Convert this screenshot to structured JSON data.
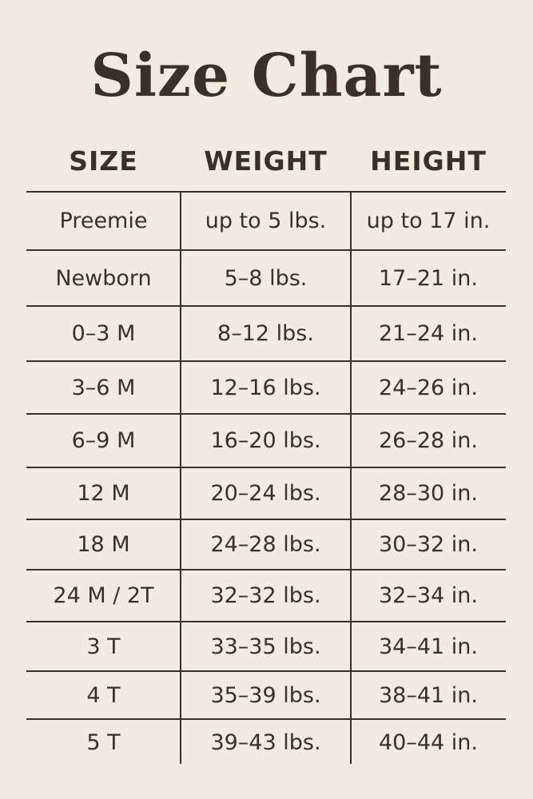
{
  "title": "Size Chart",
  "headers": [
    "SIZE",
    "WEIGHT",
    "HEIGHT"
  ],
  "rows": [
    [
      "Preemie",
      "up to 5 lbs.",
      "up to 17 in."
    ],
    [
      "Newborn",
      "5–8 lbs.",
      "17–21 in."
    ],
    [
      "0–3 M",
      "8–12 lbs.",
      "21–24 in."
    ],
    [
      "3–6 M",
      "12–16 lbs.",
      "24–26 in."
    ],
    [
      "6–9 M",
      "16–20 lbs.",
      "26–28 in."
    ],
    [
      "12 M",
      "20–24 lbs.",
      "28–30 in."
    ],
    [
      "18 M",
      "24–28 lbs.",
      "30–32 in."
    ],
    [
      "24 M / 2T",
      "32–32 lbs.",
      "32–34 in."
    ],
    [
      "3 T",
      "33–35 lbs.",
      "34–41 in."
    ],
    [
      "4 T",
      "35–39 lbs.",
      "38–41 in."
    ],
    [
      "5 T",
      "39–43 lbs.",
      "40–44 in."
    ]
  ]
}
